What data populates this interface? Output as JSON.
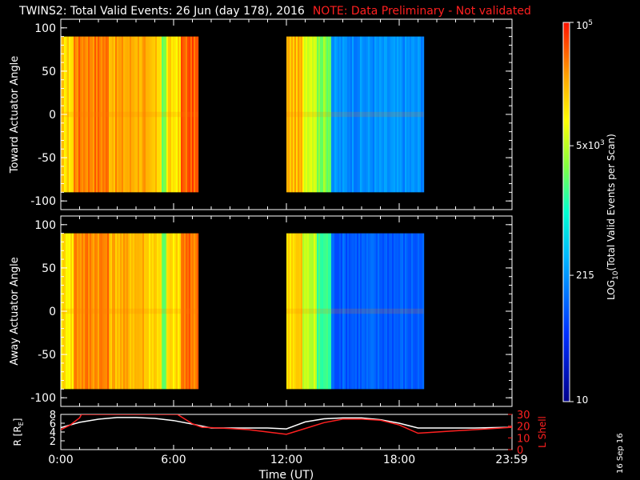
{
  "header": {
    "title": "TWINS2: Total Valid Events: 26 Jun (day 178), 2016",
    "warning": "NOTE: Data Preliminary - Not validated",
    "warning_color": "#ff2020"
  },
  "footer": {
    "datestamp": "16 Sep 16"
  },
  "chart_data": [
    {
      "type": "heatmap",
      "name": "toward-panel",
      "ylabel": "Toward Actuator Angle",
      "ylim": [
        -110,
        110
      ],
      "yticks": [
        100,
        50,
        0,
        -50,
        -100
      ],
      "xlim": [
        0,
        24
      ],
      "data_segments": [
        [
          0,
          7.3
        ],
        [
          12,
          19.3
        ]
      ],
      "y_range_data": [
        -90,
        90
      ],
      "levels_by_hour": [
        {
          "from": 0.0,
          "to": 0.6,
          "log_counts": 4.15
        },
        {
          "from": 0.6,
          "to": 2.5,
          "log_counts": 4.6
        },
        {
          "from": 2.5,
          "to": 4.5,
          "log_counts": 4.4
        },
        {
          "from": 4.5,
          "to": 5.3,
          "log_counts": 4.2
        },
        {
          "from": 5.3,
          "to": 5.6,
          "log_counts": 3.4
        },
        {
          "from": 5.6,
          "to": 6.3,
          "log_counts": 4.1
        },
        {
          "from": 6.3,
          "to": 7.3,
          "log_counts": 4.7
        },
        {
          "from": 12.0,
          "to": 12.8,
          "log_counts": 4.3
        },
        {
          "from": 12.8,
          "to": 13.6,
          "log_counts": 3.9
        },
        {
          "from": 13.6,
          "to": 14.3,
          "log_counts": 3.5
        },
        {
          "from": 14.3,
          "to": 19.3,
          "log_counts": 2.3
        }
      ]
    },
    {
      "type": "heatmap",
      "name": "away-panel",
      "ylabel": "Away Actuator Angle",
      "ylim": [
        -110,
        110
      ],
      "yticks": [
        100,
        50,
        0,
        -50,
        -100
      ],
      "xlim": [
        0,
        24
      ],
      "data_segments": [
        [
          0,
          7.3
        ],
        [
          12,
          19.3
        ]
      ],
      "y_range_data": [
        -90,
        90
      ],
      "levels_by_hour": [
        {
          "from": 0.0,
          "to": 0.6,
          "log_counts": 4.1
        },
        {
          "from": 0.6,
          "to": 2.5,
          "log_counts": 4.55
        },
        {
          "from": 2.5,
          "to": 4.5,
          "log_counts": 4.35
        },
        {
          "from": 4.5,
          "to": 5.3,
          "log_counts": 4.2
        },
        {
          "from": 5.3,
          "to": 5.6,
          "log_counts": 3.3
        },
        {
          "from": 5.6,
          "to": 6.3,
          "log_counts": 4.1
        },
        {
          "from": 6.3,
          "to": 7.3,
          "log_counts": 4.6
        },
        {
          "from": 12.0,
          "to": 12.8,
          "log_counts": 4.2
        },
        {
          "from": 12.8,
          "to": 13.6,
          "log_counts": 3.7
        },
        {
          "from": 13.6,
          "to": 14.3,
          "log_counts": 3.2
        },
        {
          "from": 14.3,
          "to": 19.3,
          "log_counts": 2.0
        }
      ]
    },
    {
      "type": "colorbar",
      "label": "LOG10(Total Valid Events per Scan)",
      "label_main": "LOG",
      "label_sub": "10",
      "label_rest": "(Total Valid Events per Scan)",
      "scale": "log",
      "range": [
        10,
        100000
      ],
      "ticks": [
        {
          "value": 10,
          "label": "10"
        },
        {
          "value": 215,
          "label": "215"
        },
        {
          "value": 5000,
          "label": "5x10^3",
          "base": "5x10",
          "exp": "3"
        },
        {
          "value": 100000,
          "label": "10^5",
          "base": "10",
          "exp": "5"
        }
      ]
    },
    {
      "type": "line",
      "name": "orbit-panel",
      "ylabel": "R [RE]",
      "ylabel_base": "R [R",
      "ylabel_sub": "E",
      "ylabel_end": "]",
      "ylabel_right": "L Shell",
      "ylabel_right_color": "#ff2020",
      "ylim_left": [
        0,
        8
      ],
      "yticks_left": [
        2,
        4,
        6,
        8
      ],
      "ylim_right": [
        0,
        30
      ],
      "yticks_right": [
        10,
        20,
        30
      ],
      "xlabel": "Time (UT)",
      "xtick_labels": [
        {
          "t": 0,
          "label": "0:00"
        },
        {
          "t": 6,
          "label": "6:00"
        },
        {
          "t": 12,
          "label": "12:00"
        },
        {
          "t": 18,
          "label": "18:00"
        },
        {
          "t": 23.98,
          "label": "23:59"
        }
      ],
      "series": [
        {
          "color": "#ffffff",
          "axis": "left",
          "x": [
            0,
            1,
            2,
            3,
            4,
            5,
            6,
            7,
            8,
            9,
            10,
            11,
            12,
            13,
            14,
            15,
            16,
            17,
            18,
            19,
            20,
            21,
            22,
            23,
            24
          ],
          "y": [
            5.0,
            6.2,
            6.9,
            7.3,
            7.3,
            7.1,
            6.6,
            5.8,
            4.9,
            4.9,
            4.9,
            4.9,
            4.7,
            6.3,
            7.0,
            7.2,
            7.2,
            6.8,
            6.0,
            4.9,
            4.9,
            4.9,
            4.9,
            5.0,
            5.1
          ]
        },
        {
          "color": "#ff2020",
          "axis": "right",
          "x": [
            0,
            0.5,
            1.0,
            1.1,
            6.2,
            6.5,
            7.0,
            7.5,
            9,
            10,
            11,
            12,
            13,
            14,
            15,
            16,
            17,
            18,
            19,
            20,
            21,
            22,
            23,
            24
          ],
          "y": [
            17,
            21,
            27,
            30,
            30,
            27,
            22,
            19,
            18,
            17,
            15,
            13,
            18,
            23,
            26,
            26,
            25,
            21,
            14,
            15,
            16,
            17,
            18,
            19
          ]
        }
      ]
    }
  ]
}
